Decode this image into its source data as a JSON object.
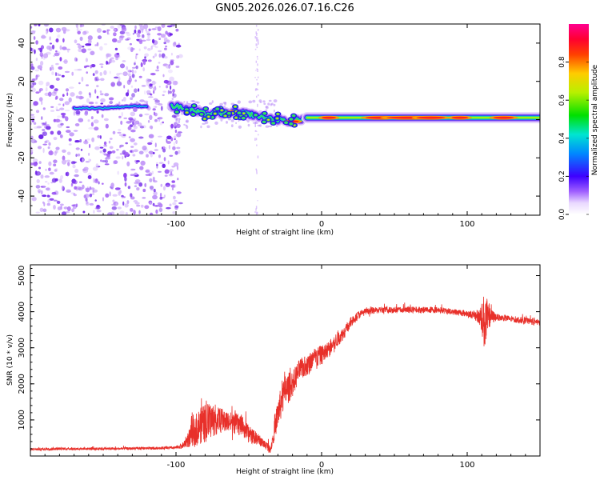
{
  "title": "GN05.2026.026.07.16.C26",
  "colors": {
    "snr_line": "#e8302a",
    "noise_purple": "#8a3cf0",
    "frame": "#000000"
  },
  "chart_data": [
    {
      "type": "heatmap",
      "name": "spectrogram",
      "xlabel": "Height of straight line (km)",
      "ylabel": "Frequency (Hz)",
      "xlim": [
        -200,
        150
      ],
      "ylim": [
        -50,
        50
      ],
      "xticks": [
        -100,
        0,
        100
      ],
      "yticks": [
        -40,
        -20,
        0,
        20,
        40
      ],
      "noise_region_x": [
        -200,
        -100
      ],
      "noise_stripe_x": -45,
      "signal_track": {
        "x": [
          -170,
          -150,
          -130,
          -110,
          -100,
          -90,
          -80,
          -70,
          -60,
          -50,
          -40,
          -30,
          -20,
          -10,
          0,
          20,
          50,
          80,
          100,
          120,
          150
        ],
        "freq": [
          6,
          6,
          7,
          7,
          7,
          5,
          3,
          3,
          4,
          3,
          1,
          0,
          -1,
          1,
          1,
          1,
          1,
          1,
          1,
          1,
          1
        ]
      },
      "colorbar": {
        "label": "Normalized spectral amplitude",
        "ticks": [
          "0.0",
          "0.2",
          "0.4",
          "0.6",
          "0.8"
        ],
        "tick_values": [
          0.0,
          0.2,
          0.4,
          0.6,
          0.8
        ],
        "range": [
          0,
          1
        ]
      }
    },
    {
      "type": "line",
      "name": "snr",
      "xlabel": "Height of straight line (km)",
      "ylabel": "SNR (10 * v/v)",
      "xlim": [
        -200,
        150
      ],
      "ylim": [
        0,
        5300
      ],
      "xticks": [
        -100,
        0,
        100
      ],
      "yticks": [
        1000,
        2000,
        3000,
        4000,
        5000
      ],
      "series": [
        {
          "name": "SNR",
          "envelope": {
            "x": [
              -200,
              -180,
              -150,
              -120,
              -100,
              -95,
              -90,
              -85,
              -80,
              -75,
              -70,
              -65,
              -60,
              -55,
              -50,
              -45,
              -40,
              -35,
              -30,
              -25,
              -20,
              -15,
              -10,
              -5,
              0,
              5,
              10,
              15,
              20,
              25,
              30,
              40,
              50,
              60,
              70,
              80,
              90,
              100,
              105,
              110,
              112,
              115,
              120,
              130,
              140,
              150
            ],
            "mean": [
              180,
              200,
              200,
              210,
              230,
              300,
              550,
              800,
              900,
              1000,
              1000,
              950,
              900,
              850,
              600,
              500,
              350,
              200,
              1200,
              1800,
              2000,
              2400,
              2500,
              2700,
              2800,
              2950,
              3200,
              3400,
              3700,
              3900,
              4000,
              4050,
              4050,
              4050,
              4050,
              4050,
              4000,
              3950,
              3900,
              3850,
              3700,
              3850,
              3850,
              3800,
              3750,
              3700
            ],
            "amp": [
              60,
              60,
              60,
              60,
              60,
              150,
              500,
              800,
              900,
              800,
              600,
              500,
              500,
              500,
              400,
              300,
              200,
              200,
              700,
              800,
              600,
              500,
              500,
              500,
              450,
              400,
              350,
              300,
              250,
              200,
              150,
              150,
              150,
              150,
              150,
              150,
              150,
              150,
              200,
              700,
              1500,
              500,
              150,
              150,
              150,
              150
            ]
          }
        }
      ]
    }
  ]
}
